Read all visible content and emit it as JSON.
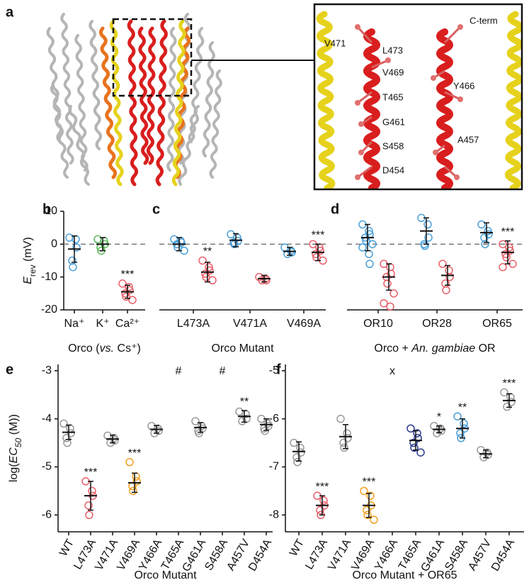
{
  "panel_a": {
    "letter": "a",
    "labels": [
      "V471",
      "L473",
      "C-term",
      "V469",
      "Y466",
      "T465",
      "G461",
      "A457",
      "S458",
      "D454"
    ]
  },
  "chart_data": [
    {
      "type": "strip",
      "panel": "b",
      "ylabel": [
        {
          "text": "E",
          "italic": true
        },
        {
          "text": "rev",
          "sub": true
        },
        {
          "text": " (mV)"
        }
      ],
      "xlabel": [
        {
          "text": "Orco ("
        },
        {
          "text": "vs.",
          "italic": true
        },
        {
          "text": " Cs⁺)"
        }
      ],
      "ylim": [
        -20,
        10
      ],
      "yticks": [
        -20,
        -10,
        0,
        10
      ],
      "hline": 0,
      "categories": [
        "Na⁺",
        "K⁺",
        "Ca²⁺"
      ],
      "groups": [
        [
          {
            "color": "#4a9fd8",
            "points": [
              2,
              1.5,
              -1,
              -5,
              -7
            ],
            "mean": -1.5,
            "sd": 4
          }
        ],
        [
          {
            "color": "#5cb85c",
            "points": [
              1.5,
              1,
              0,
              -1,
              -2
            ],
            "mean": 0,
            "sd": 2
          }
        ],
        [
          {
            "color": "#e8606a",
            "points": [
              -12,
              -13,
              -14,
              -15,
              -16,
              -17
            ],
            "mean": -14.5,
            "sd": 2,
            "sig": "***"
          }
        ]
      ]
    },
    {
      "type": "strip",
      "panel": "c",
      "xlabel": [
        {
          "text": "Orco Mutant"
        }
      ],
      "ylim": [
        -20,
        10
      ],
      "hline": 0,
      "categories": [
        "L473A",
        "V471A",
        "V469A"
      ],
      "groups": [
        [
          {
            "color": "#4a9fd8",
            "points": [
              1.5,
              1,
              0.5,
              0,
              -1,
              -2
            ],
            "mean": 0,
            "sd": 2
          },
          {
            "color": "#e8606a",
            "points": [
              -5,
              -7,
              -8,
              -9,
              -10,
              -11
            ],
            "mean": -8.5,
            "sd": 3,
            "sig": "**"
          }
        ],
        [
          {
            "color": "#4a9fd8",
            "points": [
              3,
              2,
              1,
              0.5,
              0
            ],
            "mean": 1.2,
            "sd": 2
          },
          {
            "color": "#e8606a",
            "points": [
              -10,
              -10.5,
              -11,
              -11
            ],
            "mean": -10.5,
            "sd": 1
          }
        ],
        [
          {
            "color": "#4a9fd8",
            "points": [
              -1,
              -2,
              -2.5,
              -3
            ],
            "mean": -2.2,
            "sd": 1.2
          },
          {
            "color": "#e8606a",
            "points": [
              0,
              -1,
              -2,
              -3,
              -4,
              -5
            ],
            "mean": -2.5,
            "sd": 2.5,
            "sig": "***"
          }
        ]
      ]
    },
    {
      "type": "strip",
      "panel": "d",
      "xlabel": [
        {
          "text": "Orco + "
        },
        {
          "text": "An. gambiae",
          "italic": true
        },
        {
          "text": " OR"
        }
      ],
      "ylim": [
        -20,
        10
      ],
      "hline": 0,
      "categories": [
        "OR10",
        "OR28",
        "OR65"
      ],
      "groups": [
        [
          {
            "color": "#4a9fd8",
            "points": [
              6,
              4,
              3,
              2,
              1,
              0,
              -1,
              -3,
              -6
            ],
            "mean": 2,
            "sd": 4
          },
          {
            "color": "#e8606a",
            "points": [
              -6,
              -7,
              -9,
              -10,
              -12,
              -15,
              -18,
              -19
            ],
            "mean": -10,
            "sd": 4
          }
        ],
        [
          {
            "color": "#4a9fd8",
            "points": [
              8,
              6,
              2,
              0,
              -0.5
            ],
            "mean": 4,
            "sd": 4
          },
          {
            "color": "#e8606a",
            "points": [
              -6,
              -8,
              -10,
              -12,
              -14
            ],
            "mean": -9.5,
            "sd": 3
          }
        ],
        [
          {
            "color": "#4a9fd8",
            "points": [
              6,
              4,
              3,
              2,
              0
            ],
            "mean": 3.5,
            "sd": 3
          },
          {
            "color": "#e8606a",
            "points": [
              0,
              -1,
              -2,
              -3,
              -4,
              -6,
              -7
            ],
            "mean": -2.5,
            "sd": 3.5,
            "sig": "***"
          }
        ]
      ]
    },
    {
      "type": "strip",
      "panel": "e",
      "ylabel": [
        {
          "text": "log("
        },
        {
          "text": "EC",
          "italic": true
        },
        {
          "text": "50",
          "sub": true,
          "italic": true
        },
        {
          "text": " (M))"
        }
      ],
      "xlabel": [
        {
          "text": "Orco Mutant"
        }
      ],
      "ylim": [
        -6.35,
        -2.87
      ],
      "yticks": [
        -6,
        -5,
        -4,
        -3
      ],
      "categories": [
        "WT",
        "L473A",
        "V471A",
        "V469A",
        "Y466A",
        "T465A",
        "G461A",
        "S458A",
        "A457V",
        "D454A"
      ],
      "groups": [
        [
          {
            "color": "#999999",
            "points": [
              -4.1,
              -4.2,
              -4.3,
              -4.4,
              -4.5
            ],
            "mean": -4.28,
            "sd": 0.15
          }
        ],
        [
          {
            "color": "#e8606a",
            "points": [
              -5.3,
              -5.5,
              -5.6,
              -5.8,
              -6.0
            ],
            "mean": -5.6,
            "sd": 0.3,
            "sig": "***"
          }
        ],
        [
          {
            "color": "#999999",
            "points": [
              -4.35,
              -4.4,
              -4.45,
              -4.5
            ],
            "mean": -4.42,
            "sd": 0.08
          }
        ],
        [
          {
            "color": "#f0a020",
            "points": [
              -4.9,
              -5.2,
              -5.3,
              -5.4,
              -5.5
            ],
            "mean": -5.33,
            "sd": 0.2,
            "sig": "***"
          }
        ],
        [
          {
            "color": "#999999",
            "points": [
              -4.15,
              -4.2,
              -4.25,
              -4.3
            ],
            "mean": -4.22,
            "sd": 0.08
          }
        ],
        [
          {
            "color": "#2b3a8f",
            "marker": "#"
          }
        ],
        [
          {
            "color": "#999999",
            "points": [
              -4.05,
              -4.15,
              -4.2,
              -4.25,
              -4.3
            ],
            "mean": -4.18,
            "sd": 0.1
          }
        ],
        [
          {
            "color": "#4a9fd8",
            "marker": "#"
          }
        ],
        [
          {
            "color": "#999999",
            "points": [
              -3.85,
              -3.9,
              -4.0,
              -4.05
            ],
            "mean": -3.95,
            "sd": 0.12,
            "sig": "**"
          }
        ],
        [
          {
            "color": "#999999",
            "points": [
              -4.0,
              -4.1,
              -4.15,
              -4.2,
              -4.25
            ],
            "mean": -4.12,
            "sd": 0.12
          }
        ]
      ]
    },
    {
      "type": "strip",
      "panel": "f",
      "xlabel": [
        {
          "text": "Orco Mutant + OR65"
        }
      ],
      "ylim": [
        -8.35,
        -4.87
      ],
      "yticks": [
        -8,
        -7,
        -6,
        -5
      ],
      "categories": [
        "WT",
        "L473A",
        "V471A",
        "V469A",
        "Y466A",
        "T465A",
        "G461A",
        "S458A",
        "A457V",
        "D454A"
      ],
      "groups": [
        [
          {
            "color": "#999999",
            "points": [
              -6.5,
              -6.6,
              -6.7,
              -6.8,
              -6.9
            ],
            "mean": -6.68,
            "sd": 0.2
          }
        ],
        [
          {
            "color": "#e8606a",
            "points": [
              -7.6,
              -7.7,
              -7.8,
              -7.9,
              -8.0
            ],
            "mean": -7.8,
            "sd": 0.2,
            "sig": "***"
          }
        ],
        [
          {
            "color": "#999999",
            "points": [
              -6.0,
              -6.3,
              -6.4,
              -6.5,
              -6.6
            ],
            "mean": -6.37,
            "sd": 0.25
          }
        ],
        [
          {
            "color": "#f0a020",
            "points": [
              -7.5,
              -7.6,
              -7.8,
              -7.9,
              -8.0,
              -8.1
            ],
            "mean": -7.8,
            "sd": 0.25,
            "sig": "***"
          }
        ],
        [
          {
            "color": "#222222",
            "marker": "x"
          }
        ],
        [
          {
            "color": "#2b3a8f",
            "points": [
              -6.2,
              -6.3,
              -6.4,
              -6.5,
              -6.6,
              -6.7
            ],
            "mean": -6.45,
            "sd": 0.2
          }
        ],
        [
          {
            "color": "#999999",
            "points": [
              -6.15,
              -6.2,
              -6.25,
              -6.3
            ],
            "mean": -6.22,
            "sd": 0.07,
            "sig": "*"
          }
        ],
        [
          {
            "color": "#4a9fd8",
            "points": [
              -5.95,
              -6.1,
              -6.2,
              -6.3,
              -6.4
            ],
            "mean": -6.2,
            "sd": 0.2,
            "sig": "**"
          }
        ],
        [
          {
            "color": "#999999",
            "points": [
              -6.65,
              -6.7,
              -6.75,
              -6.8
            ],
            "mean": -6.73,
            "sd": 0.08
          }
        ],
        [
          {
            "color": "#999999",
            "points": [
              -5.45,
              -5.55,
              -5.65,
              -5.75
            ],
            "mean": -5.62,
            "sd": 0.14,
            "sig": "***"
          }
        ]
      ]
    }
  ]
}
